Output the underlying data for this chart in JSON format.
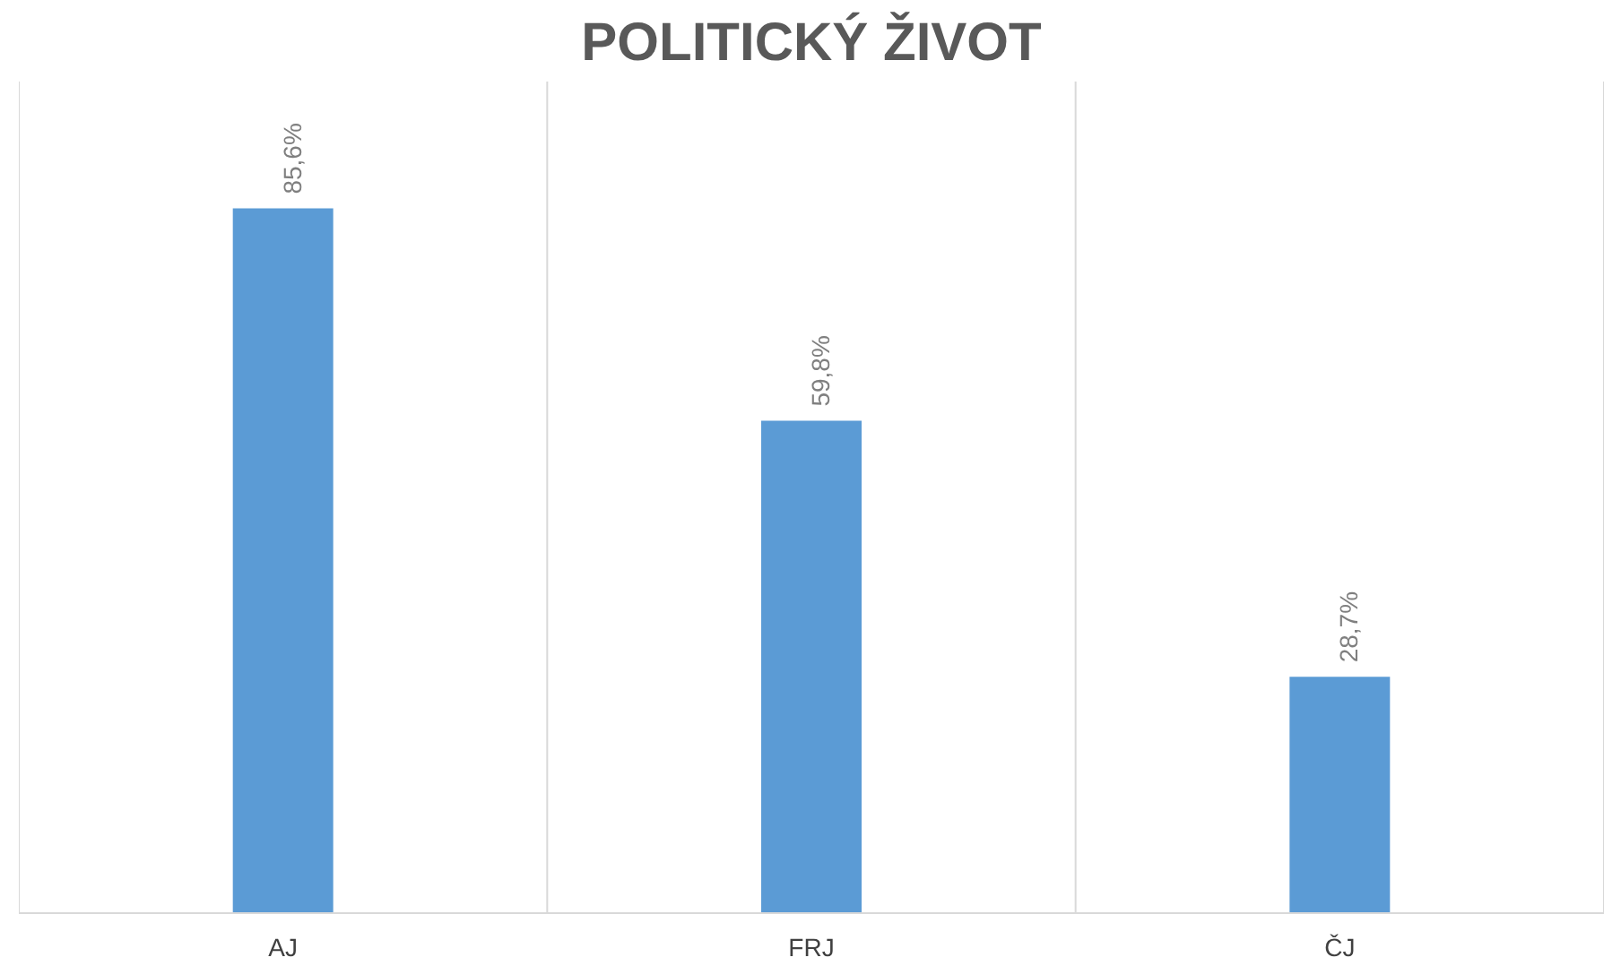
{
  "chart_data": {
    "type": "bar",
    "title": "POLITICKÝ ŽIVOT",
    "categories": [
      "AJ",
      "FRJ",
      "ČJ"
    ],
    "values": [
      85.6,
      59.8,
      28.7
    ],
    "color": "#5b9bd5",
    "value_labels": [
      "85,6%",
      "59,8%",
      "28,7%"
    ],
    "grid": "x"
  }
}
